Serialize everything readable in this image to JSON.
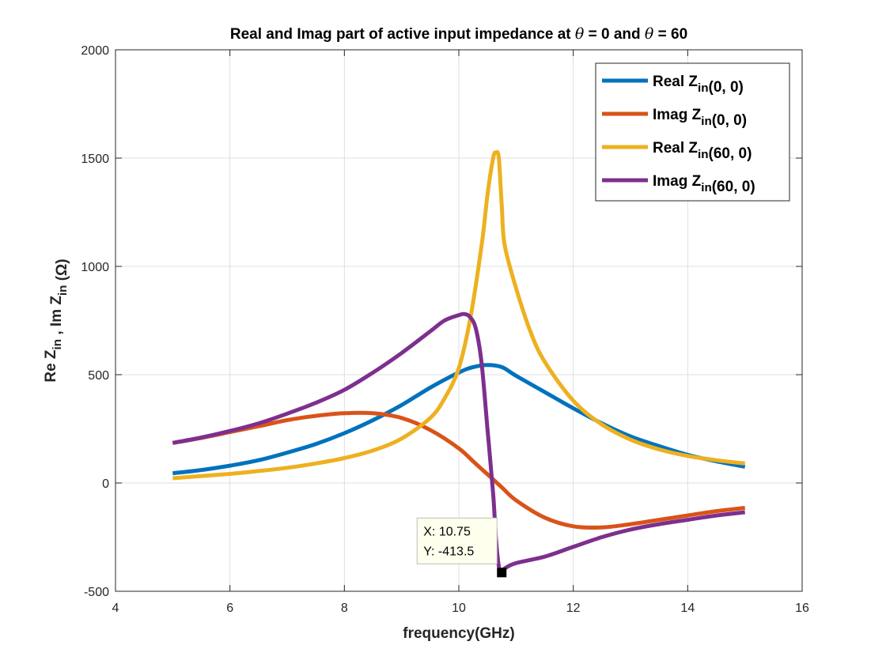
{
  "chart_data": {
    "type": "line",
    "title": "Real and Imag part of active input impedance at θ = 0 and θ = 60",
    "xlabel": "frequency(GHz)",
    "ylabel": "Re Zin , Im Zin (Ω)",
    "xlim": [
      4,
      16
    ],
    "ylim": [
      -500,
      2000
    ],
    "xticks": [
      4,
      6,
      8,
      10,
      12,
      14,
      16
    ],
    "yticks": [
      -500,
      0,
      500,
      1000,
      1500,
      2000
    ],
    "grid": true,
    "legend_position": "top-right",
    "series": [
      {
        "name": "Real Zin(0, 0)",
        "color": "#0072BD",
        "x": [
          5,
          5.5,
          6,
          6.5,
          7,
          7.5,
          8,
          8.5,
          9,
          9.5,
          10,
          10.25,
          10.5,
          10.75,
          11,
          11.5,
          12,
          12.5,
          13,
          13.5,
          14,
          14.5,
          15
        ],
        "y": [
          45,
          60,
          80,
          105,
          140,
          180,
          230,
          290,
          360,
          440,
          510,
          535,
          545,
          535,
          495,
          420,
          345,
          275,
          215,
          170,
          130,
          100,
          75
        ]
      },
      {
        "name": "Imag Zin(0, 0)",
        "color": "#D95319",
        "x": [
          5,
          5.5,
          6,
          6.5,
          7,
          7.5,
          8,
          8.5,
          9,
          9.5,
          10,
          10.25,
          10.5,
          10.75,
          11,
          11.5,
          12,
          12.5,
          13,
          13.5,
          14,
          14.5,
          15
        ],
        "y": [
          185,
          208,
          235,
          262,
          290,
          310,
          322,
          322,
          300,
          245,
          160,
          100,
          40,
          -20,
          -80,
          -160,
          -200,
          -205,
          -190,
          -170,
          -150,
          -130,
          -115
        ]
      },
      {
        "name": "Real Zin(60, 0)",
        "color": "#EDB120",
        "x": [
          5,
          5.5,
          6,
          6.5,
          7,
          7.5,
          8,
          8.5,
          9,
          9.5,
          9.75,
          10,
          10.2,
          10.4,
          10.5,
          10.6,
          10.65,
          10.7,
          10.75,
          10.8,
          11,
          11.25,
          11.5,
          12,
          12.5,
          13,
          13.5,
          14,
          14.5,
          15
        ],
        "y": [
          22,
          32,
          42,
          55,
          70,
          90,
          115,
          150,
          205,
          300,
          390,
          530,
          760,
          1100,
          1330,
          1500,
          1525,
          1500,
          1280,
          1100,
          900,
          700,
          560,
          380,
          270,
          200,
          155,
          125,
          105,
          90
        ]
      },
      {
        "name": "Imag Zin(60, 0)",
        "color": "#7E2F8E",
        "x": [
          5,
          5.5,
          6,
          6.5,
          7,
          7.5,
          8,
          8.5,
          9,
          9.5,
          9.75,
          10,
          10.1,
          10.2,
          10.3,
          10.4,
          10.5,
          10.6,
          10.65,
          10.7,
          10.75,
          10.8,
          11,
          11.5,
          12,
          12.5,
          13,
          13.5,
          14,
          14.5,
          15
        ],
        "y": [
          185,
          210,
          240,
          275,
          320,
          370,
          430,
          510,
          600,
          700,
          750,
          775,
          780,
          765,
          710,
          550,
          250,
          -50,
          -260,
          -385,
          -413.5,
          -395,
          -370,
          -340,
          -295,
          -250,
          -215,
          -190,
          -170,
          -150,
          -135
        ]
      }
    ],
    "datatip": {
      "x_label": "X: 10.75",
      "y_label": "Y: -413.5",
      "x": 10.75,
      "y": -413.5
    }
  }
}
